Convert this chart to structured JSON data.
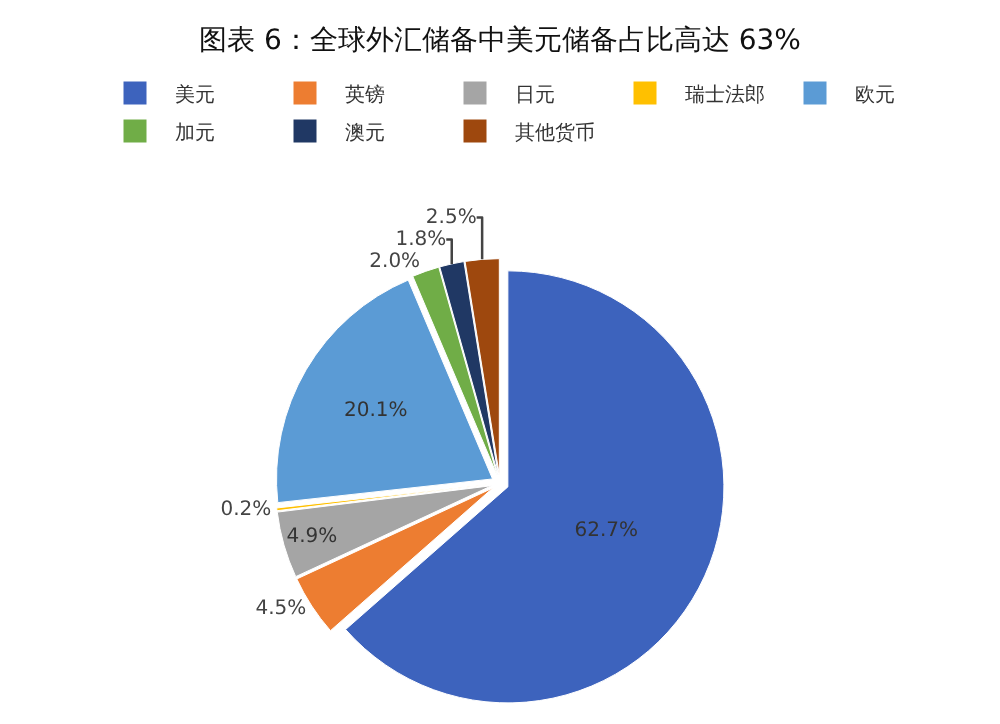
{
  "chart_data": {
    "type": "pie",
    "title": "图表 6：全球外汇储备中美元储备占比高达 63%",
    "categories": [
      "美元",
      "英镑",
      "日元",
      "瑞士法郎",
      "欧元",
      "加元",
      "澳元",
      "其他货币"
    ],
    "values": [
      62.7,
      4.5,
      4.9,
      0.2,
      20.1,
      2.0,
      1.8,
      2.5
    ],
    "value_labels": [
      "62.7%",
      "4.5%",
      "4.9%",
      "0.2%",
      "20.1%",
      "2.0%",
      "1.8%",
      "2.5%"
    ],
    "colors": [
      "#3d63bd",
      "#ed7d31",
      "#a5a5a5",
      "#ffc000",
      "#5b9bd5",
      "#70ad47",
      "#203864",
      "#9e480e"
    ],
    "legend": "top"
  }
}
